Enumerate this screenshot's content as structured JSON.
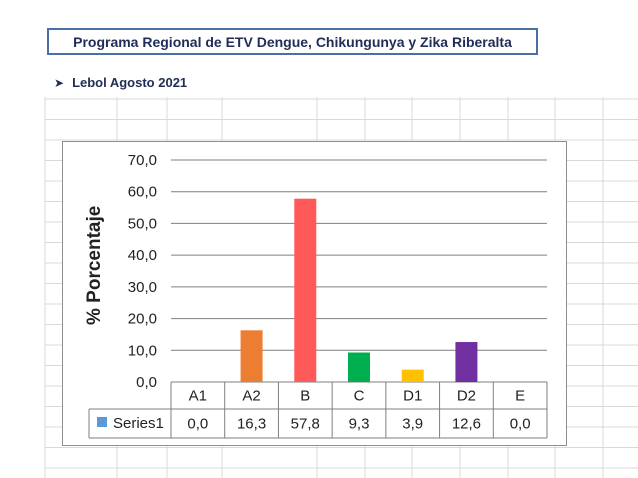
{
  "header": {
    "title": "Programa Regional de ETV Dengue, Chikungunya y Zika Riberalta",
    "subtitle": "Lebol Agosto 2021",
    "bullet_icon": "arrow-bullet-icon"
  },
  "chart_data": {
    "type": "bar",
    "categories": [
      "A1",
      "A2",
      "B",
      "C",
      "D1",
      "D2",
      "E"
    ],
    "series": [
      {
        "name": "Series1",
        "values": [
          0.0,
          16.3,
          57.8,
          9.3,
          3.9,
          12.6,
          0.0
        ],
        "value_labels": [
          "0,0",
          "16,3",
          "57,8",
          "9,3",
          "3,9",
          "12,6",
          "0,0"
        ],
        "bar_colors": [
          "#4472c4",
          "#ed7d31",
          "#ff5a5a",
          "#00b050",
          "#ffc000",
          "#7030a0",
          "#4472c4"
        ],
        "legend_color": "#5b9bd5"
      }
    ],
    "ylabel": "% Porcentaje",
    "ylim": [
      0,
      70
    ],
    "yticks": [
      "0,0",
      "10,0",
      "20,0",
      "30,0",
      "40,0",
      "50,0",
      "60,0",
      "70,0"
    ],
    "grid": true,
    "data_table": true
  }
}
